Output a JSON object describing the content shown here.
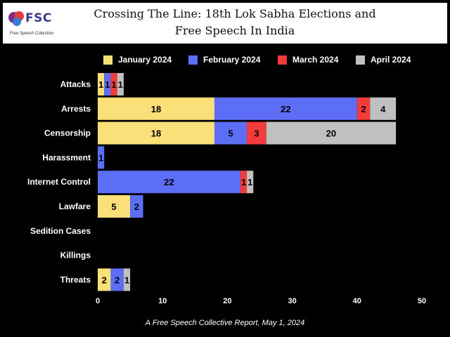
{
  "header": {
    "logo_text": "FSC",
    "logo_subtitle": "Free Speech Collective",
    "title_line1": "Crossing The Line: 18th Lok Sabha Elections and",
    "title_line2": "Free Speech In India"
  },
  "footer": {
    "caption": "A Free Speech Collective Report, May 1, 2024"
  },
  "chart_data": {
    "type": "bar",
    "orientation": "horizontal",
    "stacked": true,
    "categories": [
      "Attacks",
      "Arrests",
      "Censorship",
      "Harassment",
      "Internet Control",
      "Lawfare",
      "Sedition Cases",
      "Killings",
      "Threats"
    ],
    "series": [
      {
        "name": "January 2024",
        "color": "#fbe07a",
        "values": [
          1,
          18,
          18,
          0,
          0,
          5,
          0,
          0,
          2
        ]
      },
      {
        "name": "February 2024",
        "color": "#5b6ef5",
        "values": [
          1,
          22,
          5,
          1,
          22,
          2,
          0,
          0,
          2
        ]
      },
      {
        "name": "March 2024",
        "color": "#f23c3c",
        "values": [
          1,
          2,
          3,
          0,
          1,
          0,
          0,
          0,
          0
        ]
      },
      {
        "name": "April 2024",
        "color": "#c0c0c0",
        "values": [
          1,
          4,
          20,
          0,
          1,
          0,
          0,
          0,
          1
        ]
      }
    ],
    "xlim": [
      0,
      50
    ],
    "x_ticks": [
      0,
      10,
      20,
      30,
      40,
      50
    ],
    "legend_position": "top",
    "grid": false
  }
}
